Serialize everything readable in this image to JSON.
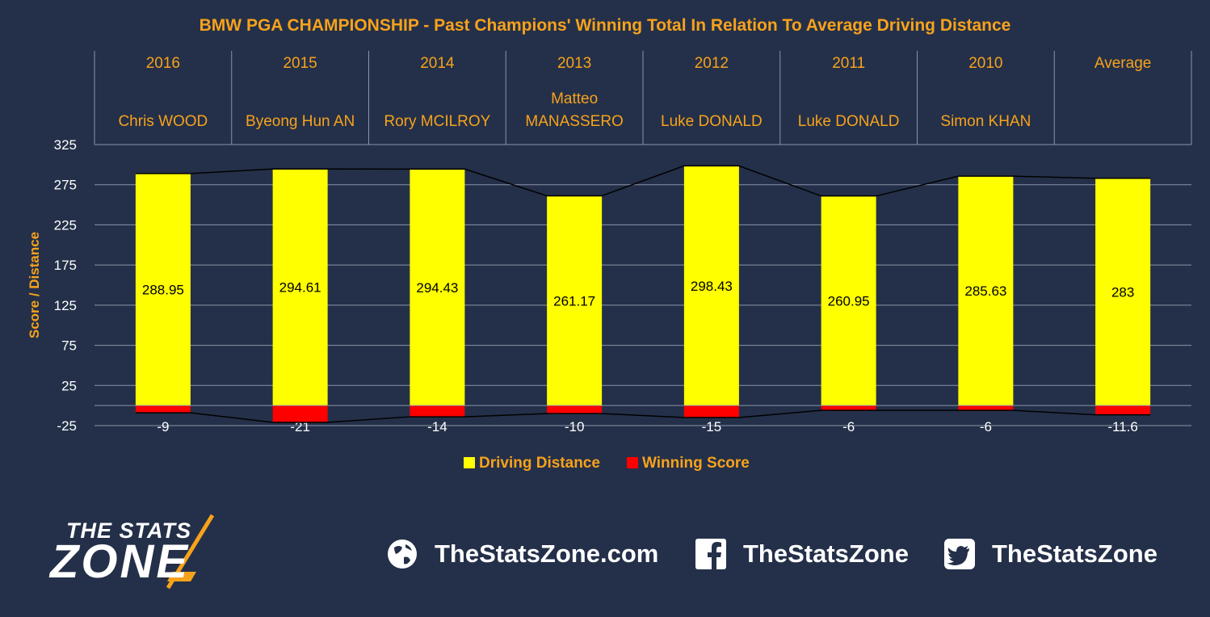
{
  "title": "BMW PGA CHAMPIONSHIP - Past Champions' Winning Total In Relation To Average Driving Distance",
  "colors": {
    "background": "#243049",
    "accent": "#f7a21b",
    "driving": "#ffff00",
    "score": "#ff0000",
    "grid": "#8a93a8"
  },
  "chart_data": {
    "type": "bar",
    "title": "BMW PGA CHAMPIONSHIP - Past Champions' Winning Total In Relation To Average Driving Distance",
    "ylabel": "Score / Distance",
    "xlabel": "",
    "ylim": [
      -25,
      325
    ],
    "yticks": [
      325,
      275,
      225,
      175,
      125,
      75,
      25,
      -25
    ],
    "grid": true,
    "legend_position": "bottom",
    "categories": [
      {
        "year": "2016",
        "player_line1": "",
        "player_line2": "Chris WOOD"
      },
      {
        "year": "2015",
        "player_line1": "",
        "player_line2": "Byeong Hun AN"
      },
      {
        "year": "2014",
        "player_line1": "",
        "player_line2": "Rory MCILROY"
      },
      {
        "year": "2013",
        "player_line1": "Matteo",
        "player_line2": "MANASSERO"
      },
      {
        "year": "2012",
        "player_line1": "",
        "player_line2": "Luke DONALD"
      },
      {
        "year": "2011",
        "player_line1": "",
        "player_line2": "Luke DONALD"
      },
      {
        "year": "2010",
        "player_line1": "",
        "player_line2": "Simon KHAN"
      },
      {
        "year": "Average",
        "player_line1": "",
        "player_line2": ""
      }
    ],
    "series": [
      {
        "name": "Driving Distance",
        "values": [
          288.95,
          294.61,
          294.43,
          261.17,
          298.43,
          260.95,
          285.63,
          283
        ],
        "labels": [
          "288.95",
          "294.61",
          "294.43",
          "261.17",
          "298.43",
          "260.95",
          "285.63",
          "283"
        ]
      },
      {
        "name": "Winning Score",
        "values": [
          -9,
          -21,
          -14,
          -10,
          -15,
          -6,
          -6,
          -11.6
        ],
        "labels": [
          "-9",
          "-21",
          "-14",
          "-10",
          "-15",
          "-6",
          "-6",
          "-11.6"
        ]
      }
    ]
  },
  "logo": {
    "line1": "THE STATS",
    "line2": "ZONE"
  },
  "social": {
    "website": "TheStatsZone.com",
    "facebook": "TheStatsZone",
    "twitter": "TheStatsZone"
  }
}
